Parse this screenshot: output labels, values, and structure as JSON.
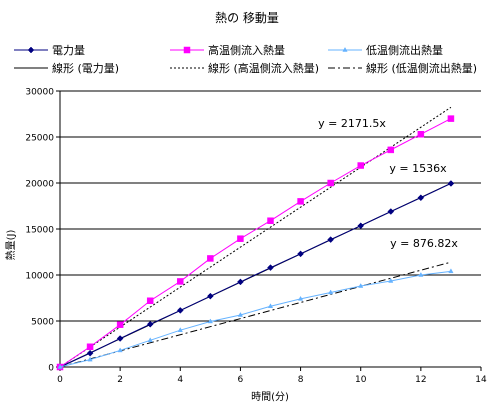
{
  "chart_data": {
    "type": "line",
    "title": "熱の 移動量",
    "xlabel": "時間(分)",
    "ylabel": "熱量(J)",
    "xlim": [
      0,
      14
    ],
    "ylim": [
      0,
      30000
    ],
    "x_ticks": [
      0,
      2,
      4,
      6,
      8,
      10,
      12,
      14
    ],
    "y_ticks": [
      0,
      5000,
      10000,
      15000,
      20000,
      25000,
      30000
    ],
    "grid": "horizontal major",
    "legend_position": "top",
    "series": [
      {
        "name": "電力量",
        "color": "#000080",
        "marker": "diamond",
        "x": [
          0,
          1,
          2,
          3,
          4,
          5,
          6,
          7,
          8,
          9,
          10,
          11,
          12,
          13
        ],
        "values": [
          0,
          1500,
          3100,
          4650,
          6150,
          7700,
          9250,
          10800,
          12300,
          13850,
          15350,
          16900,
          18400,
          19950
        ]
      },
      {
        "name": "高温側流入熱量",
        "color": "#ff00ff",
        "marker": "square",
        "x": [
          0,
          1,
          2,
          3,
          4,
          5,
          6,
          7,
          8,
          9,
          10,
          11,
          12,
          13
        ],
        "values": [
          0,
          2200,
          4600,
          7200,
          9300,
          11800,
          13950,
          15900,
          18000,
          20000,
          21900,
          23600,
          25300,
          27000
        ]
      },
      {
        "name": "低温側流出熱量",
        "color": "#66b3ff",
        "marker": "triangle",
        "x": [
          0,
          1,
          2,
          3,
          4,
          5,
          6,
          7,
          8,
          9,
          10,
          11,
          12,
          13
        ],
        "values": [
          0,
          800,
          1800,
          2900,
          4000,
          4950,
          5650,
          6600,
          7400,
          8100,
          8800,
          9350,
          10000,
          10400
        ]
      },
      {
        "name": "線形 (電力量)",
        "color": "#000000",
        "style": "solid",
        "slope": 1536
      },
      {
        "name": "線形 (高温側流入熱量)",
        "color": "#000000",
        "style": "dotted",
        "slope": 2171.5
      },
      {
        "name": "線形 (低温側流出熱量)",
        "color": "#000000",
        "style": "dashdot",
        "slope": 876.82
      }
    ],
    "annotations": [
      "y = 2171.5x",
      "y = 1536x",
      "y = 876.82x"
    ]
  }
}
